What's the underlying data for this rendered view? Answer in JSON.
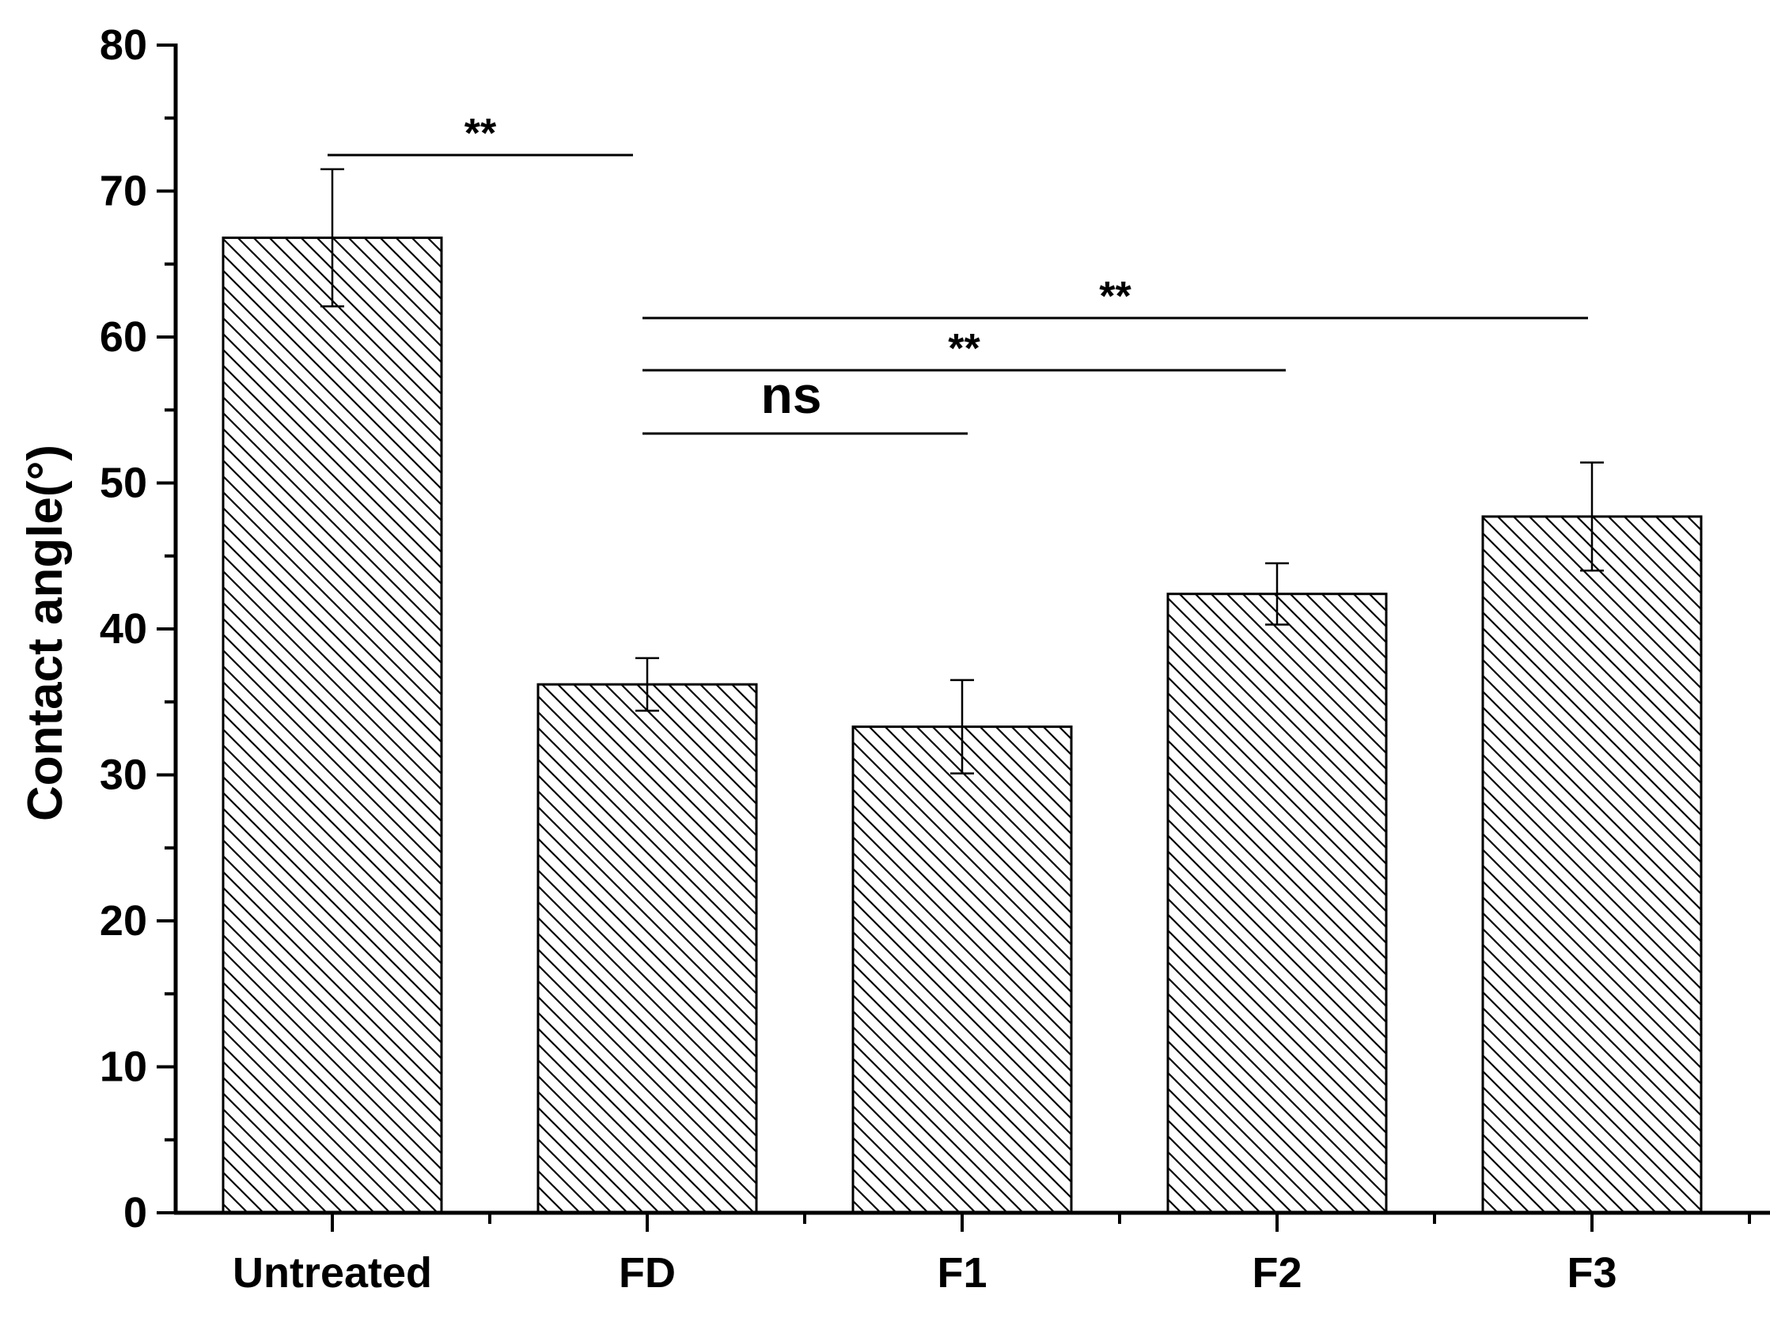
{
  "chart_data": {
    "type": "bar",
    "categories": [
      "Untreated",
      "FD",
      "F1",
      "F2",
      "F3"
    ],
    "values": [
      66.8,
      36.2,
      33.3,
      42.4,
      47.7
    ],
    "errors": [
      4.7,
      1.8,
      3.2,
      2.1,
      3.7
    ],
    "title": "",
    "xlabel": "",
    "ylabel": "Contact angle(°)",
    "ylim": [
      0,
      80
    ],
    "yticks": [
      "0",
      "10",
      "20",
      "30",
      "40",
      "50",
      "60",
      "70",
      "80"
    ],
    "bar_fill": "hatched",
    "grid": false,
    "legend": "none",
    "significance": [
      {
        "from": "Untreated",
        "to": "FD",
        "label": "**"
      },
      {
        "from": "FD",
        "to": "F3",
        "label": "**"
      },
      {
        "from": "FD",
        "to": "F2",
        "label": "**"
      },
      {
        "from": "FD",
        "to": "F1",
        "label": "ns"
      }
    ]
  }
}
